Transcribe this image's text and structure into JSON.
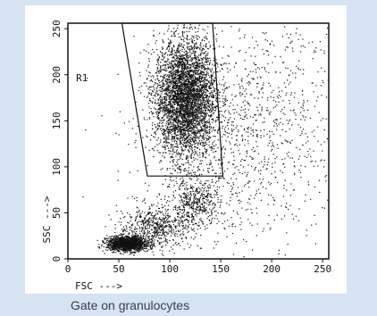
{
  "caption": "Gate on granulocytes",
  "colors": {
    "background": "#d6e3f3",
    "panel": "#ffffff",
    "ink": "#111111"
  },
  "chart_data": {
    "type": "scatter",
    "title": "",
    "xlabel": "FSC --->",
    "ylabel": "SSC --->",
    "xlim": [
      0,
      256
    ],
    "ylim": [
      0,
      256
    ],
    "xticks": [
      0,
      50,
      100,
      150,
      200,
      250
    ],
    "yticks": [
      0,
      50,
      100,
      150,
      200,
      250
    ],
    "xtick_labels": [
      "0",
      "50",
      "100",
      "150",
      "200",
      "250"
    ],
    "ytick_labels": [
      "0",
      "50",
      "100",
      "150",
      "200",
      "250"
    ],
    "grid": false,
    "gate": {
      "label": "R1",
      "vertices": [
        [
          53,
          256
        ],
        [
          142,
          256
        ],
        [
          152,
          90
        ],
        [
          78,
          90
        ]
      ]
    },
    "populations": [
      {
        "name": "",
        "center": [
          115,
          175
        ],
        "spread": [
          15,
          32
        ],
        "count": 4200
      },
      {
        "name": "",
        "center": [
          58,
          17
        ],
        "spread": [
          10,
          4
        ],
        "count": 1500
      },
      {
        "name": "",
        "center": [
          85,
          35
        ],
        "spread": [
          18,
          11
        ],
        "count": 600
      },
      {
        "name": "",
        "center": [
          125,
          60
        ],
        "spread": [
          12,
          13
        ],
        "count": 450
      },
      {
        "name": "",
        "center": [
          155,
          125
        ],
        "spread": [
          45,
          60
        ],
        "count": 800
      },
      {
        "name": "",
        "center": [
          200,
          165
        ],
        "spread": [
          40,
          60
        ],
        "count": 450
      }
    ]
  }
}
